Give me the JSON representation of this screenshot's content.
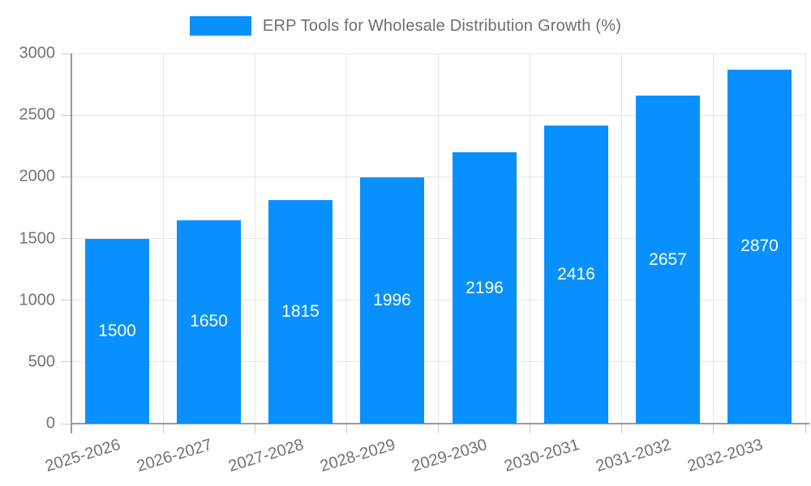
{
  "chart_data": {
    "type": "bar",
    "title": "ERP Tools for Wholesale Distribution Growth (%)",
    "categories": [
      "2025-2026",
      "2026-2027",
      "2027-2028",
      "2028-2029",
      "2029-2030",
      "2030-2031",
      "2031-2032",
      "2032-2033"
    ],
    "values": [
      1500,
      1650,
      1815,
      1996,
      2196,
      2416,
      2657,
      2870
    ],
    "xlabel": "",
    "ylabel": "",
    "ylim": [
      0,
      3000
    ],
    "ytick_step": 500,
    "grid": true,
    "legend_position": "top-center",
    "colors": {
      "bar": "#0990ff",
      "value_label": "#ffffff",
      "tick_label": "#737373",
      "title": "#6e6e6e",
      "gridline": "#e6e6e6",
      "axis": "#9a9a9a",
      "tick_mark": "#cccccc",
      "background": "#ffffff"
    }
  }
}
